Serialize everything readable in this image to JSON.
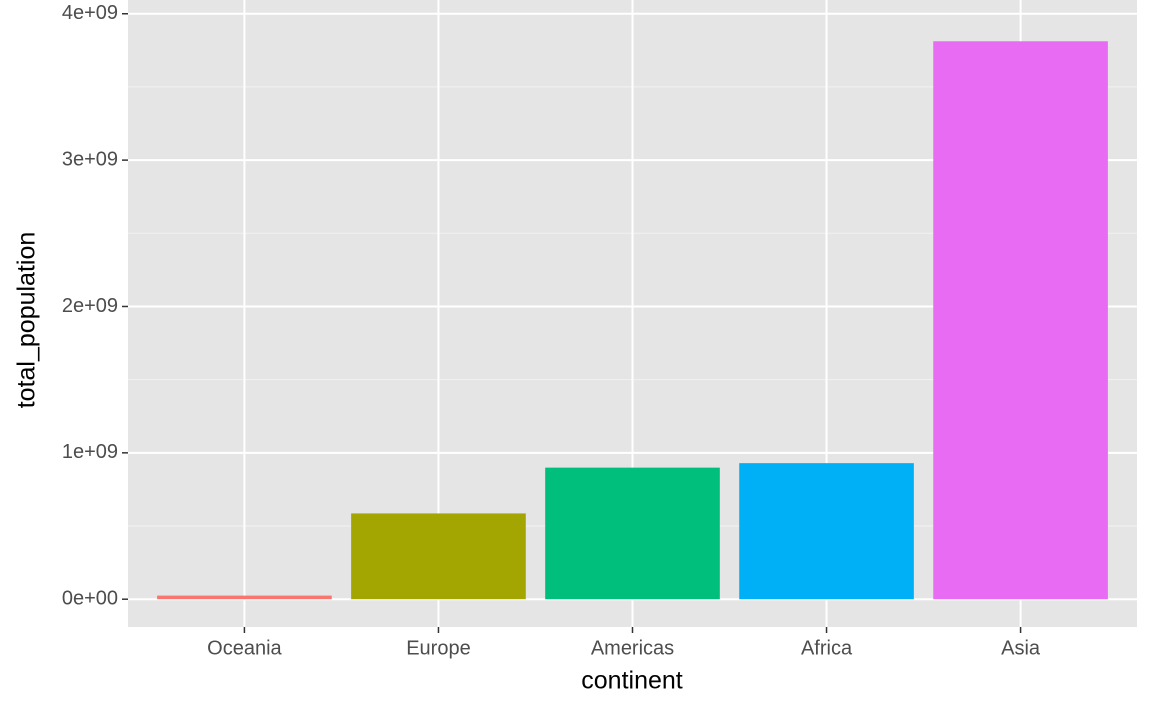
{
  "chart_data": {
    "type": "bar",
    "categories": [
      "Oceania",
      "Europe",
      "Americas",
      "Africa",
      "Asia"
    ],
    "values": [
      24549947,
      586098529,
      898871184,
      929539692,
      3811953827
    ],
    "colors": [
      "#F8766D",
      "#A3A500",
      "#00BF7D",
      "#00B0F6",
      "#E76BF3"
    ],
    "x_label": "continent",
    "y_label": "total_population",
    "ylim": [
      -190000000,
      4094000000
    ],
    "yticks": [
      {
        "value": 0,
        "label": "0e+00"
      },
      {
        "value": 1000000000,
        "label": "1e+09"
      },
      {
        "value": 2000000000,
        "label": "2e+09"
      },
      {
        "value": 3000000000,
        "label": "3e+09"
      },
      {
        "value": 4000000000,
        "label": "4e+09"
      }
    ],
    "grid": true
  }
}
